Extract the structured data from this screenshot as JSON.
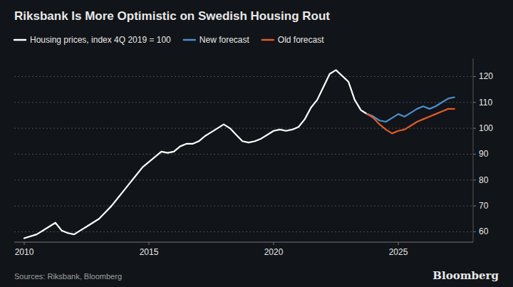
{
  "chart_data": {
    "type": "line",
    "title": "Riksbank Is More Optimistic on Swedish Housing Rout",
    "series": [
      {
        "name": "Housing prices, index 4Q 2019 = 100",
        "color": "#ffffff",
        "x": [
          2010.0,
          2010.5,
          2011.0,
          2011.25,
          2011.5,
          2011.75,
          2012.0,
          2012.25,
          2012.5,
          2012.75,
          2013.0,
          2013.25,
          2013.5,
          2013.75,
          2014.0,
          2014.25,
          2014.5,
          2014.75,
          2015.0,
          2015.25,
          2015.5,
          2015.75,
          2016.0,
          2016.25,
          2016.5,
          2016.75,
          2017.0,
          2017.25,
          2017.5,
          2017.75,
          2018.0,
          2018.25,
          2018.5,
          2018.75,
          2019.0,
          2019.25,
          2019.5,
          2019.75,
          2020.0,
          2020.25,
          2020.5,
          2020.75,
          2021.0,
          2021.25,
          2021.5,
          2021.75,
          2022.0,
          2022.25,
          2022.5,
          2023.0,
          2023.25,
          2023.5,
          2023.75,
          2024.0
        ],
        "values": [
          57.5,
          59.0,
          62.0,
          63.5,
          60.5,
          59.5,
          59.0,
          60.5,
          62.0,
          63.5,
          65.0,
          67.5,
          70.0,
          73.0,
          76.0,
          79.0,
          82.0,
          85.0,
          87.0,
          89.0,
          91.0,
          90.5,
          91.0,
          93.0,
          94.0,
          94.0,
          95.0,
          97.0,
          98.5,
          100.0,
          101.5,
          100.0,
          97.5,
          95.0,
          94.5,
          95.0,
          96.0,
          97.5,
          99.0,
          99.5,
          99.0,
          99.5,
          100.5,
          103.5,
          108.0,
          111.0,
          116.0,
          121.0,
          122.5,
          118.0,
          111.0,
          107.0,
          105.5,
          104.5
        ]
      },
      {
        "name": "New forecast",
        "color": "#4c8fce",
        "x": [
          2023.75,
          2024.0,
          2024.25,
          2024.5,
          2024.75,
          2025.0,
          2025.25,
          2025.5,
          2025.75,
          2026.0,
          2026.25,
          2026.5,
          2026.75,
          2027.0,
          2027.25
        ],
        "values": [
          105.5,
          104.5,
          103.0,
          102.5,
          104.0,
          105.5,
          104.5,
          106.0,
          107.5,
          108.5,
          107.5,
          108.5,
          110.0,
          111.5,
          112.0
        ]
      },
      {
        "name": "Old forecast",
        "color": "#e05a2b",
        "x": [
          2023.75,
          2024.0,
          2024.25,
          2024.5,
          2024.75,
          2025.0,
          2025.25,
          2025.5,
          2025.75,
          2026.0,
          2026.25,
          2026.5,
          2026.75,
          2027.0,
          2027.25
        ],
        "values": [
          105.5,
          104.0,
          101.5,
          99.5,
          98.0,
          99.0,
          99.5,
          101.0,
          102.5,
          103.5,
          104.5,
          105.5,
          106.5,
          107.5,
          107.5
        ]
      }
    ],
    "xlim": [
      2009.6,
      2028.0
    ],
    "ylim": [
      56,
      127
    ],
    "xticks": [
      2010,
      2015,
      2020,
      2025
    ],
    "yticks": [
      60,
      70,
      80,
      90,
      100,
      110,
      120
    ],
    "grid": true,
    "legend": "top-left",
    "annotations": [
      "Sources: Riksbank, Bloomberg",
      "Bloomberg"
    ]
  }
}
